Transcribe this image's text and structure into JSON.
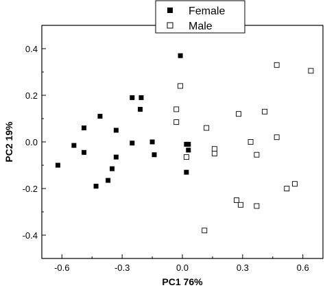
{
  "chart_data": {
    "type": "scatter",
    "xlabel": "PC1 76%",
    "ylabel": "PC2 19%",
    "xlim": [
      -0.7,
      0.7
    ],
    "ylim": [
      -0.5,
      0.5
    ],
    "xticks": [
      -0.6,
      -0.3,
      0.0,
      0.3,
      0.6
    ],
    "xtick_labels": [
      "-0.6",
      "-0.3",
      "0.0",
      "0.3",
      "0.6"
    ],
    "yticks": [
      -0.4,
      -0.2,
      0.0,
      0.2,
      0.4
    ],
    "ytick_labels": [
      "-0.4",
      "-0.2",
      "0.0",
      "0.2",
      "0.4"
    ],
    "grid": false,
    "legend_position": "top-center",
    "series": [
      {
        "name": "Female",
        "marker": "filled-square",
        "color": "#000000",
        "points": [
          [
            -0.62,
            -0.1
          ],
          [
            -0.54,
            -0.015
          ],
          [
            -0.49,
            0.06
          ],
          [
            -0.49,
            -0.045
          ],
          [
            -0.41,
            0.11
          ],
          [
            -0.43,
            -0.19
          ],
          [
            -0.37,
            -0.165
          ],
          [
            -0.35,
            -0.115
          ],
          [
            -0.33,
            0.05
          ],
          [
            -0.33,
            -0.065
          ],
          [
            -0.25,
            0.19
          ],
          [
            -0.25,
            -0.005
          ],
          [
            -0.21,
            0.14
          ],
          [
            -0.205,
            0.19
          ],
          [
            -0.15,
            0.0
          ],
          [
            -0.14,
            -0.055
          ],
          [
            -0.01,
            0.37
          ],
          [
            0.02,
            -0.01
          ],
          [
            0.03,
            -0.01
          ],
          [
            0.03,
            -0.035
          ],
          [
            0.02,
            -0.13
          ]
        ]
      },
      {
        "name": "Male",
        "marker": "open-square",
        "color": "#000000",
        "points": [
          [
            -0.01,
            0.24
          ],
          [
            -0.03,
            0.14
          ],
          [
            -0.03,
            0.085
          ],
          [
            0.02,
            -0.065
          ],
          [
            0.12,
            0.06
          ],
          [
            0.11,
            -0.38
          ],
          [
            0.16,
            -0.03
          ],
          [
            0.16,
            -0.05
          ],
          [
            0.28,
            0.12
          ],
          [
            0.27,
            -0.25
          ],
          [
            0.29,
            -0.27
          ],
          [
            0.34,
            0.0
          ],
          [
            0.37,
            -0.055
          ],
          [
            0.37,
            -0.275
          ],
          [
            0.41,
            0.13
          ],
          [
            0.47,
            0.33
          ],
          [
            0.47,
            0.02
          ],
          [
            0.52,
            -0.2
          ],
          [
            0.56,
            -0.18
          ],
          [
            0.64,
            0.305
          ]
        ]
      }
    ]
  }
}
